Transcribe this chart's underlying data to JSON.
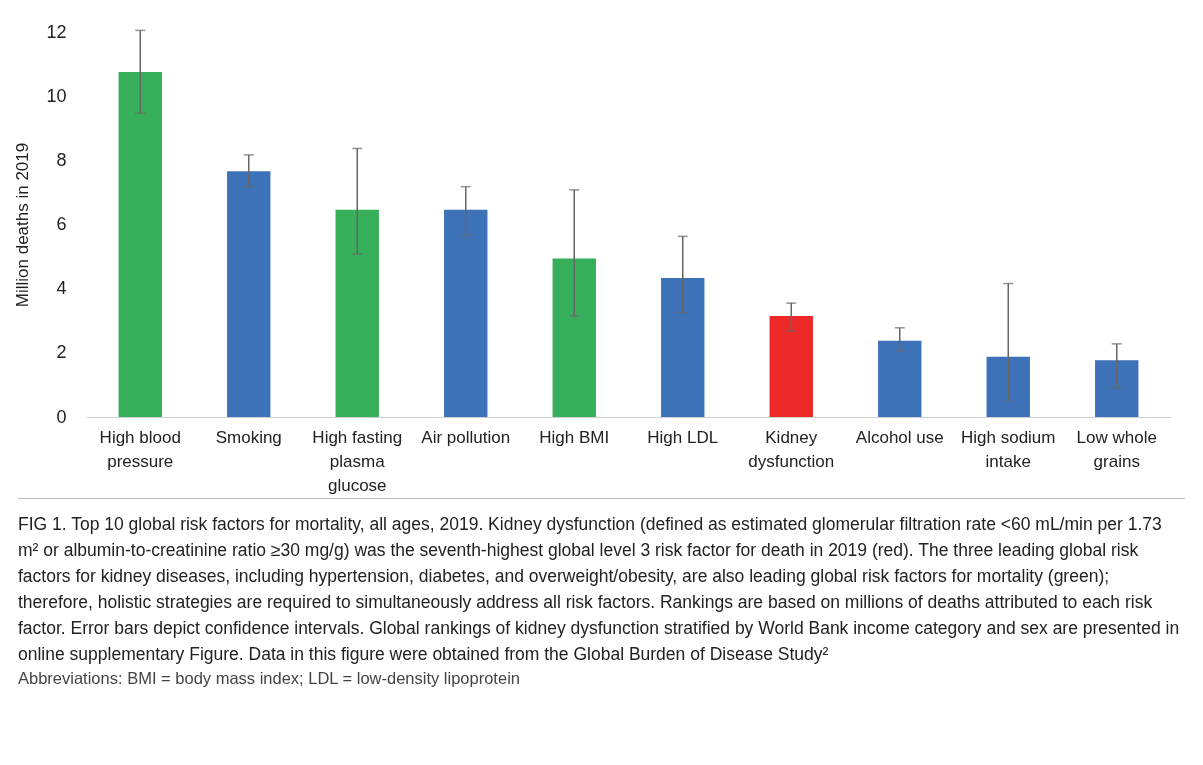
{
  "chart_data": {
    "type": "bar",
    "ylabel": "Million deaths in 2019",
    "categories": [
      "High blood pressure",
      "Smoking",
      "High fasting plasma glucose",
      "Air pollution",
      "High BMI",
      "High LDL",
      "Kidney dysfunction",
      "Alcohol use",
      "High sodium intake",
      "Low whole grains"
    ],
    "values": [
      10.75,
      7.66,
      6.46,
      6.46,
      4.94,
      4.33,
      3.15,
      2.38,
      1.88,
      1.77
    ],
    "colors": [
      "#37ae5a",
      "#3e72b8",
      "#37ae5a",
      "#3e72b8",
      "#37ae5a",
      "#3e72b8",
      "#ec2828",
      "#3e72b8",
      "#3e72b8",
      "#3e72b8"
    ],
    "errors": [
      [
        9.47,
        12.05
      ],
      [
        7.18,
        8.17
      ],
      [
        5.08,
        8.37
      ],
      [
        5.66,
        7.18
      ],
      [
        3.15,
        7.08
      ],
      [
        3.25,
        5.63
      ],
      [
        2.68,
        3.55
      ],
      [
        2.07,
        2.78
      ],
      [
        0.52,
        4.16
      ],
      [
        0.91,
        2.28
      ]
    ],
    "ylim": [
      0,
      12
    ],
    "yticks": [
      0,
      2,
      4,
      6,
      8,
      10,
      12
    ],
    "annotations": [
      "FIG 1. Top 10 global risk factors for mortality, all ages, 2019. Kidney dysfunction (defined as estimated glomerular filtration rate <60 mL/min per 1.73 m² or albumin-to-creatinine ratio ≥30 mg/g) was the seventh-highest global level 3 risk factor for death in 2019 (red). The three leading global risk factors for kidney diseases, including hypertension, diabetes, and overweight/obesity, are also leading global risk factors for mortality (green); therefore, holistic strategies are required to simultaneously address all risk factors. Rankings are based on millions of deaths attributed to each risk factor. Error bars depict confidence intervals. Global rankings of kidney dysfunction stratified by World Bank income category and sex are presented in online supplementary Figure. Data in this figure were obtained from the Global Burden of Disease Study²",
      "Abbreviations: BMI = body mass index; LDL = low-density lipoprotein"
    ]
  }
}
